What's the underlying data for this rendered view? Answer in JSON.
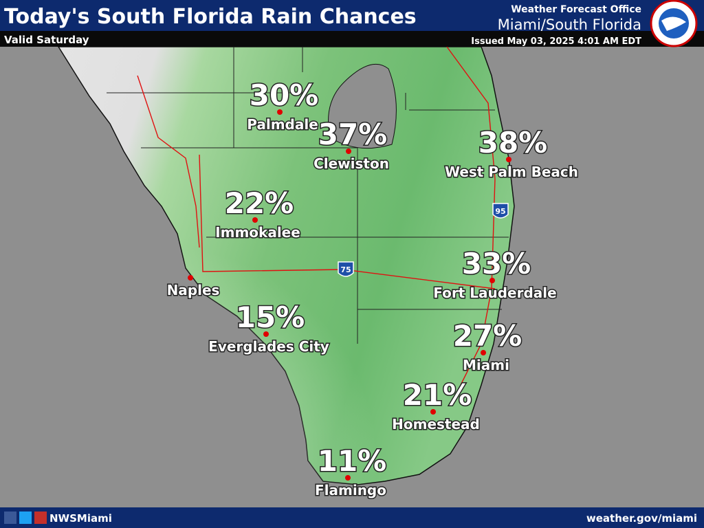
{
  "header": {
    "title": "Today's South Florida Rain Chances",
    "valid": "Valid Saturday",
    "office": "Weather Forecast Office",
    "region": "Miami/South Florida",
    "issued": "Issued May 03, 2025 4:01 AM EDT"
  },
  "cities": [
    {
      "name": "Palmdale",
      "chance": "30%"
    },
    {
      "name": "Clewiston",
      "chance": "37%"
    },
    {
      "name": "West Palm Beach",
      "chance": "38%"
    },
    {
      "name": "Immokalee",
      "chance": "22%"
    },
    {
      "name": "Naples"
    },
    {
      "name": "Everglades City",
      "chance": "15%"
    },
    {
      "name": "Fort Lauderdale",
      "chance": "33%"
    },
    {
      "name": "Miami",
      "chance": "27%"
    },
    {
      "name": "Homestead",
      "chance": "21%"
    },
    {
      "name": "Flamingo",
      "chance": "11%"
    }
  ],
  "highways": [
    "75",
    "95"
  ],
  "footer": {
    "handle": "NWSMiami",
    "url": "weather.gov/miami"
  }
}
